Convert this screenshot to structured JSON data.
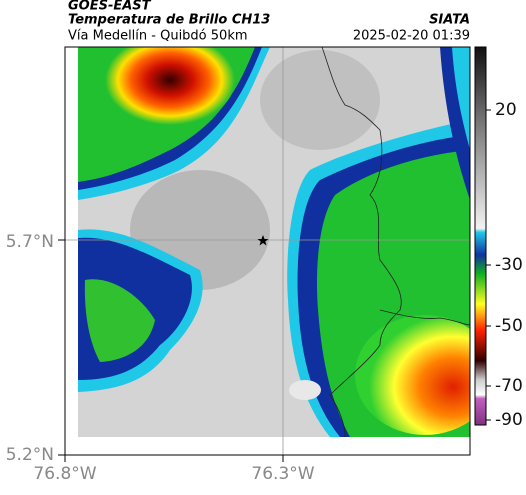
{
  "header": {
    "satellite": "GOES-EAST",
    "title": "Temperatura de Brillo CH13",
    "source": "SIATA",
    "subtitle": "Vía Medellín - Quibdó 50km",
    "timestamp": "2025-02-20 01:39"
  },
  "map": {
    "lat_labels": [
      "5.7°N",
      "5.2°N"
    ],
    "lon_labels": [
      "76.8°W",
      "76.3°W"
    ]
  },
  "colorbar": {
    "ticks": [
      "20",
      "-30",
      "-50",
      "-70",
      "-90"
    ]
  }
}
